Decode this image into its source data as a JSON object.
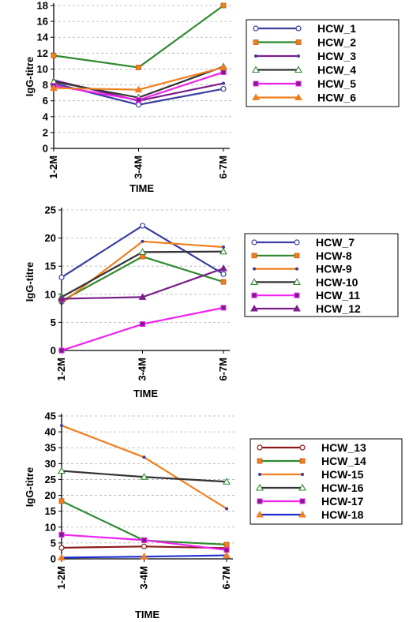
{
  "chart_data": [
    {
      "type": "line",
      "categories": [
        "1-2M",
        "3-4M",
        "6-7M"
      ],
      "ylabel": "IgG-titre",
      "xlabel": "TIME",
      "ylim": [
        0,
        18
      ],
      "yticks": [
        0,
        2,
        4,
        6,
        8,
        10,
        12,
        14,
        16,
        18
      ],
      "grid": true,
      "legend": "right",
      "series": [
        {
          "name": "HCW_1",
          "values": [
            8.2,
            5.5,
            7.5
          ],
          "color": "#3a3fa0",
          "marker": "circle-open"
        },
        {
          "name": "HCW_2",
          "values": [
            11.7,
            10.2,
            18.0
          ],
          "color": "#2f8a2f",
          "marker": "square-orange"
        },
        {
          "name": "HCW_3",
          "values": [
            8.6,
            6.0,
            8.2
          ],
          "color": "#7a1f8a",
          "marker": "dot"
        },
        {
          "name": "HCW_4",
          "values": [
            8.4,
            6.4,
            10.3
          ],
          "color": "#333333",
          "marker": "triangle-open"
        },
        {
          "name": "HCW_5",
          "values": [
            7.9,
            6.1,
            9.6
          ],
          "color": "#ee22ee",
          "marker": "square"
        },
        {
          "name": "HCW_6",
          "values": [
            7.6,
            7.4,
            10.2
          ],
          "color": "#f07f1f",
          "marker": "triangle"
        }
      ]
    },
    {
      "type": "line",
      "categories": [
        "1-2M",
        "3-4M",
        "6-7M"
      ],
      "ylabel": "IgG-titre",
      "xlabel": "TIME",
      "ylim": [
        0,
        25
      ],
      "yticks": [
        0,
        5,
        10,
        15,
        20,
        25
      ],
      "grid": true,
      "legend": "right",
      "series": [
        {
          "name": "HCW_7",
          "values": [
            13.0,
            22.2,
            13.6
          ],
          "color": "#3a3fa0",
          "marker": "circle-open"
        },
        {
          "name": "HCW-8",
          "values": [
            8.8,
            16.7,
            12.2
          ],
          "color": "#2f8a2f",
          "marker": "square-orange"
        },
        {
          "name": "HCW-9",
          "values": [
            8.4,
            19.4,
            18.4
          ],
          "color": "#f07f1f",
          "marker": "dot"
        },
        {
          "name": "HCW-10",
          "values": [
            9.5,
            17.5,
            17.6
          ],
          "color": "#333333",
          "marker": "triangle-open"
        },
        {
          "name": "HCW_11",
          "values": [
            0.0,
            4.7,
            7.6
          ],
          "color": "#ee22ee",
          "marker": "square"
        },
        {
          "name": "HCW_12",
          "values": [
            9.2,
            9.5,
            14.6
          ],
          "color": "#7a1f8a",
          "marker": "triangle"
        }
      ]
    },
    {
      "type": "line",
      "categories": [
        "1-2M",
        "3-4M",
        "6-7M"
      ],
      "ylabel": "IgG-titre",
      "xlabel": "TIME",
      "ylim": [
        0,
        45
      ],
      "yticks": [
        0,
        5,
        10,
        15,
        20,
        25,
        30,
        35,
        40,
        45
      ],
      "grid": true,
      "legend": "right",
      "series": [
        {
          "name": "HCW_13",
          "values": [
            3.5,
            3.9,
            3.4
          ],
          "color": "#8b1a1a",
          "marker": "circle-open"
        },
        {
          "name": "HCW_14",
          "values": [
            18.2,
            5.8,
            4.5
          ],
          "color": "#2f8a2f",
          "marker": "square-orange"
        },
        {
          "name": "HCW-15",
          "values": [
            42.0,
            32.0,
            15.8
          ],
          "color": "#f07f1f",
          "marker": "dot"
        },
        {
          "name": "HCW-16",
          "values": [
            27.7,
            25.8,
            24.3
          ],
          "color": "#333333",
          "marker": "triangle-open"
        },
        {
          "name": "HCW-17",
          "values": [
            7.6,
            5.9,
            2.8
          ],
          "color": "#ee22ee",
          "marker": "square"
        },
        {
          "name": "HCW-18",
          "values": [
            0.4,
            0.7,
            1.1
          ],
          "color": "#1f2fcf",
          "marker": "triangle-orange"
        }
      ]
    }
  ]
}
